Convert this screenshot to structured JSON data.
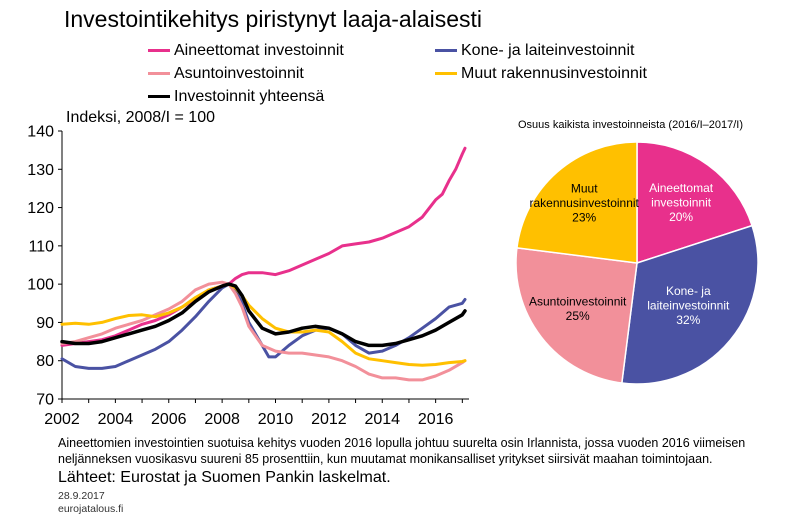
{
  "title": "Investointikehitys piristynyt laaja-alaisesti",
  "legend": [
    {
      "name": "Aineettomat investoinnit",
      "color": "#e8308c"
    },
    {
      "name": "Kone- ja laiteinvestoinnit",
      "color": "#4a52a3"
    },
    {
      "name": "Asuntoinvestoinnit",
      "color": "#f2909a"
    },
    {
      "name": "Muut rakennusinvestoinnit",
      "color": "#ffc000"
    },
    {
      "name": "Investoinnit yhteensä",
      "color": "#000000"
    }
  ],
  "footnote": "Aineettomien investointien suotuisa kehitys vuoden 2016 lopulla johtuu suurelta osin Irlannista, jossa vuoden 2016 viimeisen neljänneksen vuosikasvu suureni 85 prosenttiin, kun muutamat monikansalliset yritykset siirsivät maahan toimintojaan.",
  "sources": "Lähteet: Eurostat ja Suomen Pankin laskelmat.",
  "date": "28.9.2017",
  "site": "eurojatalous.fi",
  "chart_data": [
    {
      "type": "line",
      "title": "",
      "ylabel": "Indeksi, 2008/I = 100",
      "xlabel": "",
      "xlim": [
        2002,
        2017.25
      ],
      "ylim": [
        70,
        140
      ],
      "xticks": [
        "2002",
        "2004",
        "2006",
        "2008",
        "2010",
        "2012",
        "2014",
        "2016"
      ],
      "yticks": [
        "70",
        "80",
        "90",
        "100",
        "110",
        "120",
        "130",
        "140"
      ],
      "grid": false,
      "legend_position": "top",
      "series": [
        {
          "name": "Aineettomat investoinnit",
          "color": "#e8308c",
          "points": [
            [
              2002.0,
              84.0
            ],
            [
              2002.5,
              84.5
            ],
            [
              2003.0,
              85.0
            ],
            [
              2003.5,
              85.5
            ],
            [
              2004.0,
              86.5
            ],
            [
              2004.5,
              88.0
            ],
            [
              2005.0,
              89.5
            ],
            [
              2005.5,
              90.5
            ],
            [
              2006.0,
              92.0
            ],
            [
              2006.5,
              94.0
            ],
            [
              2007.0,
              96.0
            ],
            [
              2007.5,
              98.5
            ],
            [
              2008.0,
              99.5
            ],
            [
              2008.25,
              100.0
            ],
            [
              2008.5,
              101.5
            ],
            [
              2008.75,
              102.5
            ],
            [
              2009.0,
              103.0
            ],
            [
              2009.5,
              103.0
            ],
            [
              2010.0,
              102.5
            ],
            [
              2010.5,
              103.5
            ],
            [
              2011.0,
              105.0
            ],
            [
              2011.5,
              106.5
            ],
            [
              2012.0,
              108.0
            ],
            [
              2012.5,
              110.0
            ],
            [
              2013.0,
              110.5
            ],
            [
              2013.5,
              111.0
            ],
            [
              2014.0,
              112.0
            ],
            [
              2014.5,
              113.5
            ],
            [
              2015.0,
              115.0
            ],
            [
              2015.5,
              117.5
            ],
            [
              2016.0,
              122.0
            ],
            [
              2016.25,
              123.5
            ],
            [
              2016.5,
              127.0
            ],
            [
              2016.75,
              130.0
            ],
            [
              2017.0,
              134.0
            ],
            [
              2017.1,
              135.5
            ]
          ]
        },
        {
          "name": "Kone- ja laiteinvestoinnit",
          "color": "#4a52a3",
          "points": [
            [
              2002.0,
              80.5
            ],
            [
              2002.5,
              78.5
            ],
            [
              2003.0,
              78.0
            ],
            [
              2003.5,
              78.0
            ],
            [
              2004.0,
              78.5
            ],
            [
              2004.5,
              80.0
            ],
            [
              2005.0,
              81.5
            ],
            [
              2005.5,
              83.0
            ],
            [
              2006.0,
              85.0
            ],
            [
              2006.5,
              88.0
            ],
            [
              2007.0,
              91.5
            ],
            [
              2007.5,
              95.5
            ],
            [
              2008.0,
              99.0
            ],
            [
              2008.25,
              100.0
            ],
            [
              2008.5,
              98.5
            ],
            [
              2008.75,
              95.0
            ],
            [
              2009.0,
              90.0
            ],
            [
              2009.5,
              84.0
            ],
            [
              2009.75,
              81.0
            ],
            [
              2010.0,
              81.0
            ],
            [
              2010.5,
              84.0
            ],
            [
              2011.0,
              86.5
            ],
            [
              2011.5,
              88.0
            ],
            [
              2012.0,
              88.5
            ],
            [
              2012.5,
              87.0
            ],
            [
              2013.0,
              84.0
            ],
            [
              2013.5,
              82.0
            ],
            [
              2014.0,
              82.5
            ],
            [
              2014.5,
              84.0
            ],
            [
              2015.0,
              86.0
            ],
            [
              2015.5,
              88.5
            ],
            [
              2016.0,
              91.0
            ],
            [
              2016.5,
              94.0
            ],
            [
              2017.0,
              95.0
            ],
            [
              2017.1,
              96.0
            ]
          ]
        },
        {
          "name": "Asuntoinvestoinnit",
          "color": "#f2909a",
          "points": [
            [
              2002.0,
              84.5
            ],
            [
              2002.5,
              85.0
            ],
            [
              2003.0,
              86.0
            ],
            [
              2003.5,
              87.0
            ],
            [
              2004.0,
              88.5
            ],
            [
              2004.5,
              89.5
            ],
            [
              2005.0,
              90.5
            ],
            [
              2005.5,
              92.0
            ],
            [
              2006.0,
              93.5
            ],
            [
              2006.5,
              95.5
            ],
            [
              2007.0,
              98.5
            ],
            [
              2007.5,
              100.0
            ],
            [
              2008.0,
              100.5
            ],
            [
              2008.25,
              100.0
            ],
            [
              2008.5,
              97.5
            ],
            [
              2008.75,
              94.0
            ],
            [
              2009.0,
              89.0
            ],
            [
              2009.5,
              84.0
            ],
            [
              2010.0,
              82.5
            ],
            [
              2010.5,
              82.0
            ],
            [
              2011.0,
              82.0
            ],
            [
              2011.5,
              81.5
            ],
            [
              2012.0,
              81.0
            ],
            [
              2012.5,
              80.0
            ],
            [
              2013.0,
              78.5
            ],
            [
              2013.5,
              76.5
            ],
            [
              2014.0,
              75.5
            ],
            [
              2014.5,
              75.5
            ],
            [
              2015.0,
              75.0
            ],
            [
              2015.5,
              75.0
            ],
            [
              2016.0,
              76.0
            ],
            [
              2016.5,
              77.5
            ],
            [
              2017.0,
              79.5
            ],
            [
              2017.1,
              80.0
            ]
          ]
        },
        {
          "name": "Muut rakennusinvestoinnit",
          "color": "#ffc000",
          "points": [
            [
              2002.0,
              89.5
            ],
            [
              2002.5,
              89.8
            ],
            [
              2003.0,
              89.5
            ],
            [
              2003.5,
              90.0
            ],
            [
              2004.0,
              91.0
            ],
            [
              2004.5,
              91.8
            ],
            [
              2005.0,
              92.0
            ],
            [
              2005.5,
              91.5
            ],
            [
              2006.0,
              92.5
            ],
            [
              2006.5,
              94.0
            ],
            [
              2007.0,
              96.5
            ],
            [
              2007.5,
              98.5
            ],
            [
              2008.0,
              99.5
            ],
            [
              2008.25,
              100.0
            ],
            [
              2008.5,
              99.0
            ],
            [
              2008.75,
              97.0
            ],
            [
              2009.0,
              94.5
            ],
            [
              2009.5,
              91.0
            ],
            [
              2010.0,
              88.5
            ],
            [
              2010.5,
              87.5
            ],
            [
              2011.0,
              87.5
            ],
            [
              2011.5,
              88.0
            ],
            [
              2012.0,
              87.5
            ],
            [
              2012.5,
              85.0
            ],
            [
              2013.0,
              82.0
            ],
            [
              2013.5,
              80.5
            ],
            [
              2014.0,
              80.0
            ],
            [
              2014.5,
              79.5
            ],
            [
              2015.0,
              79.0
            ],
            [
              2015.5,
              78.8
            ],
            [
              2016.0,
              79.0
            ],
            [
              2016.5,
              79.5
            ],
            [
              2017.0,
              79.8
            ],
            [
              2017.1,
              80.0
            ]
          ]
        },
        {
          "name": "Investoinnit yhteensä",
          "color": "#000000",
          "points": [
            [
              2002.0,
              85.0
            ],
            [
              2002.5,
              84.5
            ],
            [
              2003.0,
              84.5
            ],
            [
              2003.5,
              85.0
            ],
            [
              2004.0,
              86.0
            ],
            [
              2004.5,
              87.0
            ],
            [
              2005.0,
              88.0
            ],
            [
              2005.5,
              89.0
            ],
            [
              2006.0,
              90.5
            ],
            [
              2006.5,
              92.5
            ],
            [
              2007.0,
              95.5
            ],
            [
              2007.5,
              98.0
            ],
            [
              2008.0,
              99.5
            ],
            [
              2008.25,
              100.0
            ],
            [
              2008.5,
              99.5
            ],
            [
              2008.75,
              97.0
            ],
            [
              2009.0,
              93.0
            ],
            [
              2009.5,
              88.5
            ],
            [
              2010.0,
              87.0
            ],
            [
              2010.5,
              87.5
            ],
            [
              2011.0,
              88.5
            ],
            [
              2011.5,
              89.0
            ],
            [
              2012.0,
              88.5
            ],
            [
              2012.5,
              87.0
            ],
            [
              2013.0,
              85.0
            ],
            [
              2013.5,
              84.0
            ],
            [
              2014.0,
              84.0
            ],
            [
              2014.5,
              84.5
            ],
            [
              2015.0,
              85.5
            ],
            [
              2015.5,
              86.5
            ],
            [
              2016.0,
              88.0
            ],
            [
              2016.5,
              90.0
            ],
            [
              2017.0,
              92.0
            ],
            [
              2017.1,
              93.0
            ]
          ]
        }
      ]
    },
    {
      "type": "pie",
      "title": "Osuus kaikista investoinneista (2016/I–2017/I)",
      "slices": [
        {
          "label_lines": [
            "Aineettomat",
            "investoinnit"
          ],
          "value": 20,
          "value_label": "20%",
          "color": "#e8308c"
        },
        {
          "label_lines": [
            "Kone- ja",
            "laiteinvestoinnit"
          ],
          "value": 32,
          "value_label": "32%",
          "color": "#4a52a3"
        },
        {
          "label_lines": [
            "Asuntoinvestoinnit"
          ],
          "value": 25,
          "value_label": "25%",
          "color": "#f2909a"
        },
        {
          "label_lines": [
            "Muut",
            "rakennusinvestoinnit"
          ],
          "value": 23,
          "value_label": "23%",
          "color": "#ffc000"
        }
      ]
    }
  ]
}
